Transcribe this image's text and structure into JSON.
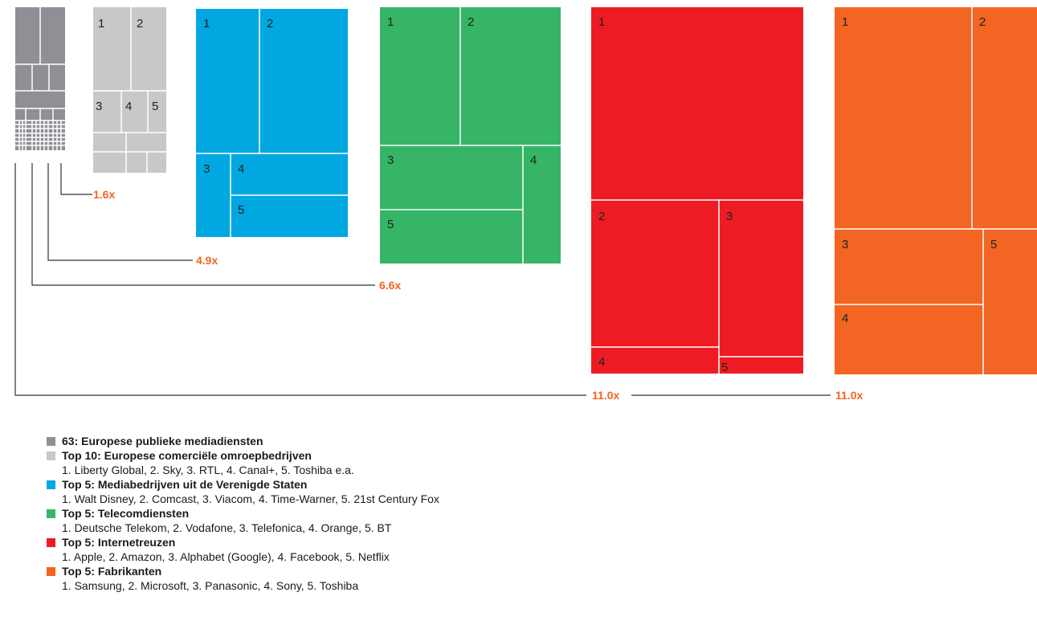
{
  "chart_data": {
    "type": "treemap",
    "groups": [
      {
        "key": "public",
        "color": "#8f9096",
        "legend": "63: Europese publieke mediadiensten",
        "members": "",
        "multiplier": "",
        "cell_labels": []
      },
      {
        "key": "commercial",
        "color": "#c7c8ca",
        "legend": "Top 10: Europese comerciële omroepbedrijven",
        "members": "1. Liberty Global, 2. Sky, 3. RTL, 4. Canal+, 5. Toshiba e.a.",
        "multiplier": "1.6x",
        "cell_labels": [
          "1",
          "2",
          "3",
          "4",
          "5"
        ]
      },
      {
        "key": "us-media",
        "color": "#00a7e1",
        "legend": "Top 5: Mediabedrijven uit de Verenigde Staten",
        "members": "1. Walt Disney, 2. Comcast, 3. Viacom, 4. Time-Warner, 5. 21st Century Fox",
        "multiplier": "4.9x",
        "cell_labels": [
          "1",
          "2",
          "3",
          "4",
          "5"
        ]
      },
      {
        "key": "telecom",
        "color": "#35b565",
        "legend": "Top 5: Telecomdiensten",
        "members": "1. Deutsche Telekom, 2. Vodafone, 3. Telefonica, 4. Orange, 5. BT",
        "multiplier": "6.6x",
        "cell_labels": [
          "1",
          "2",
          "3",
          "4",
          "5"
        ]
      },
      {
        "key": "internet",
        "color": "#ed1c24",
        "legend": "Top 5: Internetreuzen",
        "members": "1. Apple, 2. Amazon, 3. Alphabet (Google), 4. Facebook, 5. Netflix",
        "multiplier": "11.0x",
        "cell_labels": [
          "1",
          "2",
          "3",
          "4",
          "5"
        ]
      },
      {
        "key": "manufacturers",
        "color": "#f26522",
        "legend": "Top 5: Fabrikanten",
        "members": "1. Samsung, 2. Microsoft, 3. Panasonic, 4. Sony, 5. Toshiba",
        "multiplier": "11.0x",
        "cell_labels": [
          "1",
          "2",
          "3",
          "4",
          "5"
        ]
      }
    ],
    "multiplier_color": "#f26522",
    "connector_color": "#333333"
  }
}
